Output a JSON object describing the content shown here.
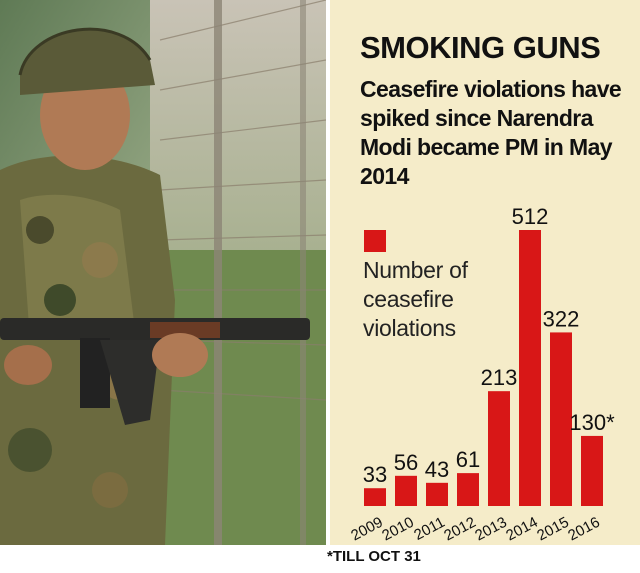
{
  "headline": "SMOKING GUNS",
  "subheadline": "Ceasefire violations have spiked since Narendra Modi became PM in May 2014",
  "footnote": "*TILL OCT 31",
  "colors": {
    "bar": "#d81717",
    "panel": "#f5ecc9"
  },
  "photo": {
    "icon": "soldier-with-rifle-photo"
  },
  "chart_data": {
    "type": "bar",
    "title": "",
    "xlabel": "",
    "ylabel": "",
    "legend": "Number of ceasefire violations",
    "categories": [
      "2009",
      "2010",
      "2011",
      "2012",
      "2013",
      "2014",
      "2015",
      "2016"
    ],
    "values": [
      33,
      56,
      43,
      61,
      213,
      512,
      322,
      130
    ],
    "value_labels": [
      "33",
      "56",
      "43",
      "61",
      "213",
      "512",
      "322",
      "130*"
    ],
    "ylim": [
      0,
      512
    ],
    "grid": false,
    "legend_position": "left"
  }
}
